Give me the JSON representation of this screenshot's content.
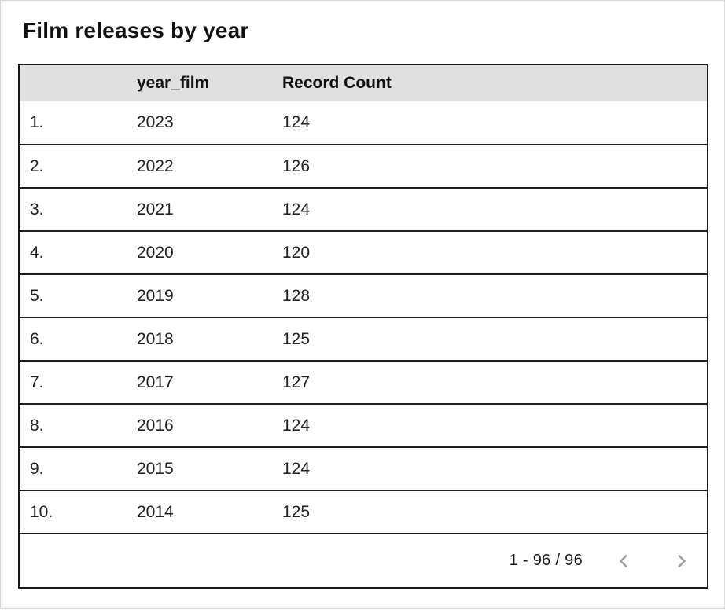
{
  "page": {
    "title": "Film releases by year"
  },
  "table": {
    "columns": [
      {
        "id": "index",
        "label": ""
      },
      {
        "id": "year_film",
        "label": "year_film"
      },
      {
        "id": "record_count",
        "label": "Record Count"
      }
    ],
    "rows": [
      {
        "index": "1.",
        "year_film": "2023",
        "record_count": "124"
      },
      {
        "index": "2.",
        "year_film": "2022",
        "record_count": "126"
      },
      {
        "index": "3.",
        "year_film": "2021",
        "record_count": "124"
      },
      {
        "index": "4.",
        "year_film": "2020",
        "record_count": "120"
      },
      {
        "index": "5.",
        "year_film": "2019",
        "record_count": "128"
      },
      {
        "index": "6.",
        "year_film": "2018",
        "record_count": "125"
      },
      {
        "index": "7.",
        "year_film": "2017",
        "record_count": "127"
      },
      {
        "index": "8.",
        "year_film": "2016",
        "record_count": "124"
      },
      {
        "index": "9.",
        "year_film": "2015",
        "record_count": "124"
      },
      {
        "index": "10.",
        "year_film": "2014",
        "record_count": "125"
      }
    ]
  },
  "pagination": {
    "range_label": "1 - 96 / 96",
    "prev_icon": "chevron-left-icon",
    "next_icon": "chevron-right-icon"
  },
  "colors": {
    "header_bg": "#e0e0e0",
    "table_border": "#1a1a1a",
    "row_border": "#1f1f1f",
    "chevron": "#9e9e9e",
    "canvas_border": "#d6d6d6"
  }
}
